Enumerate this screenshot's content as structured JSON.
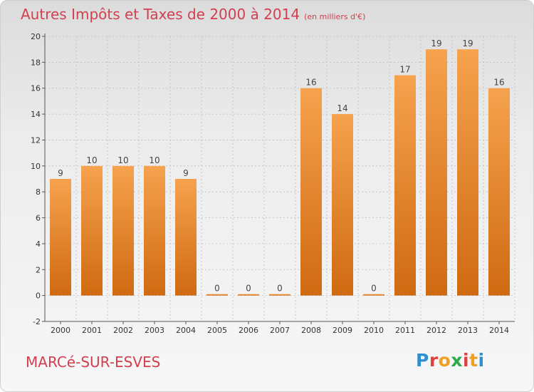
{
  "header": {
    "title": "Autres Impôts et Taxes de 2000 à 2014",
    "unit": "(en milliers d'€)"
  },
  "footer": {
    "commune": "MARCé-SUR-ESVES",
    "logo": [
      "P",
      "r",
      "o",
      "x",
      "i",
      "t",
      "i"
    ],
    "logo_colors": [
      "#2f8fd0",
      "#e04040",
      "#f0a020",
      "#2faa4a",
      "#e04040",
      "#f0a020",
      "#2f8fd0"
    ]
  },
  "colors": {
    "bar_top": "#f6a24e",
    "bar_bottom": "#cf6a12",
    "axis": "#555555",
    "grid": "#bdbdbd"
  },
  "chart_data": {
    "type": "bar",
    "categories": [
      "2000",
      "2001",
      "2002",
      "2003",
      "2004",
      "2005",
      "2006",
      "2007",
      "2008",
      "2009",
      "2010",
      "2011",
      "2012",
      "2013",
      "2014"
    ],
    "values": [
      9,
      10,
      10,
      10,
      9,
      0,
      0,
      0,
      16,
      14,
      0,
      17,
      19,
      19,
      16
    ],
    "title": "Autres Impôts et Taxes de 2000 à 2014",
    "ylim": [
      -2,
      20
    ],
    "yticks": [
      -2,
      0,
      2,
      4,
      6,
      8,
      10,
      12,
      14,
      16,
      18,
      20
    ],
    "grid": true
  }
}
